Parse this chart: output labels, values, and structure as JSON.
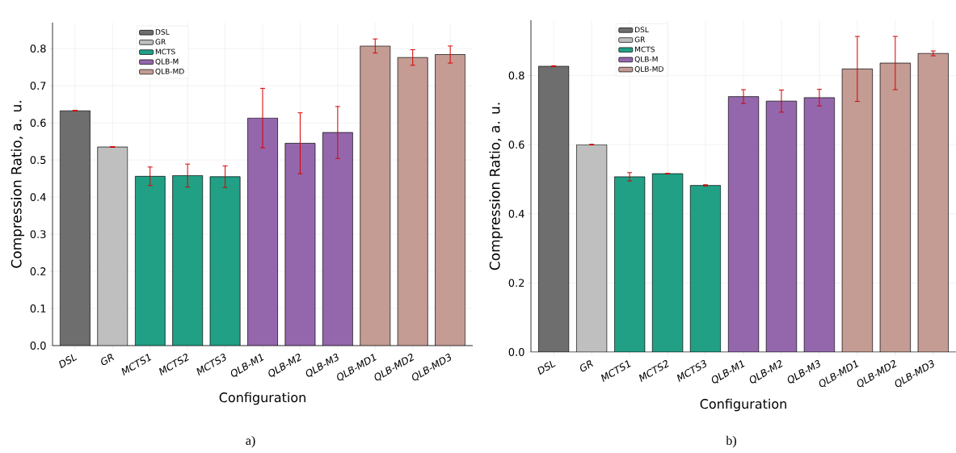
{
  "chart_data": [
    {
      "type": "bar",
      "xlabel": "Configuration",
      "ylabel": "Compression Ratio, a. u.",
      "annotations": [
        "a)"
      ],
      "categories": [
        "DSL",
        "GR",
        "MCTS1",
        "MCTS2",
        "MCTS3",
        "QLB-M1",
        "QLB-M2",
        "QLB-M3",
        "QLB-MD1",
        "QLB-MD2",
        "QLB-MD3"
      ],
      "series": [
        {
          "name": "DSL",
          "color": "#6e6e6e",
          "values": [
            0.633,
            null,
            null,
            null,
            null,
            null,
            null,
            null,
            null,
            null,
            null
          ],
          "errors": [
            0.001,
            null,
            null,
            null,
            null,
            null,
            null,
            null,
            null,
            null,
            null
          ]
        },
        {
          "name": "GR",
          "color": "#bfbfbf",
          "values": [
            null,
            0.535,
            null,
            null,
            null,
            null,
            null,
            null,
            null,
            null,
            null
          ],
          "errors": [
            null,
            0.001,
            null,
            null,
            null,
            null,
            null,
            null,
            null,
            null,
            null
          ]
        },
        {
          "name": "MCTS",
          "color": "#21a086",
          "values": [
            null,
            null,
            0.456,
            0.458,
            0.455,
            null,
            null,
            null,
            null,
            null,
            null
          ],
          "errors": [
            null,
            null,
            0.025,
            0.031,
            0.029,
            null,
            null,
            null,
            null,
            null,
            null
          ]
        },
        {
          "name": "QLB-M",
          "color": "#9467ad",
          "values": [
            null,
            null,
            null,
            null,
            null,
            0.613,
            0.545,
            0.574,
            null,
            null,
            null
          ],
          "errors": [
            null,
            null,
            null,
            null,
            null,
            0.08,
            0.082,
            0.07,
            null,
            null,
            null
          ]
        },
        {
          "name": "QLB-MD",
          "color": "#c49c94",
          "values": [
            null,
            null,
            null,
            null,
            null,
            null,
            null,
            null,
            0.807,
            0.776,
            0.784
          ],
          "errors": [
            null,
            null,
            null,
            null,
            null,
            null,
            null,
            null,
            0.019,
            0.021,
            0.023
          ]
        }
      ],
      "ylim": [
        0,
        0.87
      ],
      "yticks": [
        {
          "value": 0,
          "label": "0.0"
        },
        0.1,
        0.2,
        0.3,
        0.4,
        0.5,
        0.6,
        0.7,
        0.8
      ],
      "grid": true,
      "legend": "top left"
    },
    {
      "type": "bar",
      "xlabel": "Configuration",
      "ylabel": "Compression Ratio, a. u.",
      "annotations": [
        "b)"
      ],
      "categories": [
        "DSL",
        "GR",
        "MCTS1",
        "MCTS2",
        "MCTS3",
        "QLB-M1",
        "QLB-M2",
        "QLB-M3",
        "QLB-MD1",
        "QLB-MD2",
        "QLB-MD3"
      ],
      "series": [
        {
          "name": "DSL",
          "color": "#6e6e6e",
          "values": [
            0.827,
            null,
            null,
            null,
            null,
            null,
            null,
            null,
            null,
            null,
            null
          ],
          "errors": [
            0.001,
            null,
            null,
            null,
            null,
            null,
            null,
            null,
            null,
            null,
            null
          ]
        },
        {
          "name": "GR",
          "color": "#bfbfbf",
          "values": [
            null,
            0.6,
            null,
            null,
            null,
            null,
            null,
            null,
            null,
            null,
            null
          ],
          "errors": [
            null,
            0.001,
            null,
            null,
            null,
            null,
            null,
            null,
            null,
            null,
            null
          ]
        },
        {
          "name": "MCTS",
          "color": "#21a086",
          "values": [
            null,
            null,
            0.507,
            0.516,
            0.482,
            null,
            null,
            null,
            null,
            null,
            null
          ],
          "errors": [
            null,
            null,
            0.012,
            0.001,
            0.002,
            null,
            null,
            null,
            null,
            null,
            null
          ]
        },
        {
          "name": "QLB-M",
          "color": "#9467ad",
          "values": [
            null,
            null,
            null,
            null,
            null,
            0.739,
            0.726,
            0.736,
            null,
            null,
            null
          ],
          "errors": [
            null,
            null,
            null,
            null,
            null,
            0.02,
            0.032,
            0.024,
            null,
            null,
            null
          ]
        },
        {
          "name": "QLB-MD",
          "color": "#c49c94",
          "values": [
            null,
            null,
            null,
            null,
            null,
            null,
            null,
            null,
            0.819,
            0.836,
            0.864
          ],
          "errors": [
            null,
            null,
            null,
            null,
            null,
            null,
            null,
            null,
            0.094,
            0.077,
            0.007
          ]
        }
      ],
      "ylim": [
        0,
        0.96
      ],
      "yticks": [
        {
          "value": 0,
          "label": "0.0"
        },
        0.2,
        0.4,
        0.6,
        0.8
      ],
      "grid": true,
      "legend": "top left"
    }
  ]
}
